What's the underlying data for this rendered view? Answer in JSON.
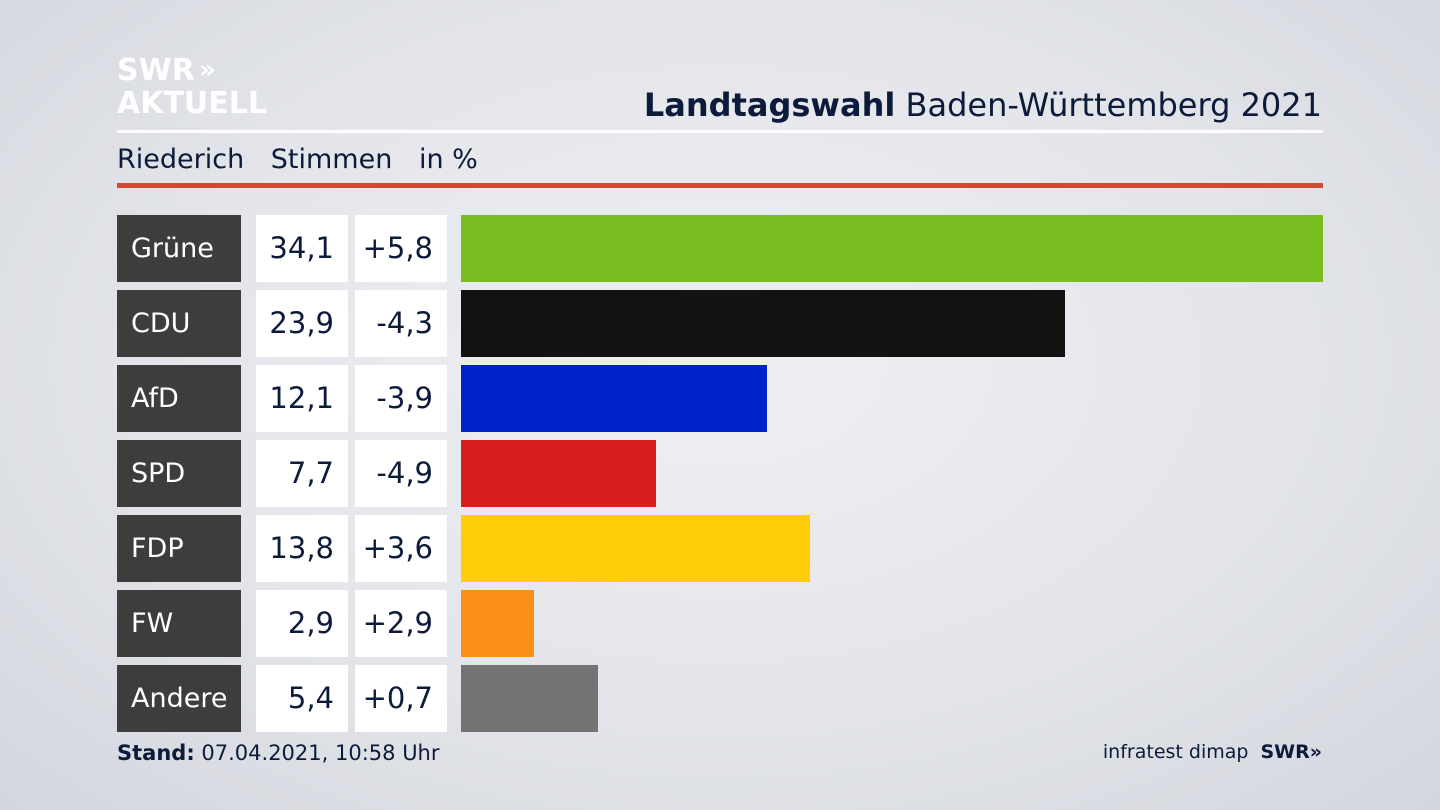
{
  "brand": {
    "line1": "SWR",
    "arrows": "»",
    "line2": "AKTUELL"
  },
  "header": {
    "title_bold": "Landtagswahl",
    "title_rest": "Baden-Württemberg 2021"
  },
  "subheader": {
    "place": "Riederich",
    "label": "Stimmen",
    "unit": "in %"
  },
  "footer": {
    "stand_label": "Stand:",
    "stand_value": "07.04.2021, 10:58 Uhr",
    "source": "infratest dimap",
    "logo": "SWR»"
  },
  "colors": {
    "Grüne": "#78be20",
    "CDU": "#121212",
    "AfD": "#0021cc",
    "SPD": "#d81f1f",
    "FDP": "#ffcc08",
    "FW": "#fd8e17",
    "Andere": "#737373"
  },
  "chart_data": {
    "type": "bar",
    "orientation": "horizontal",
    "categories": [
      "Grüne",
      "CDU",
      "AfD",
      "SPD",
      "FDP",
      "FW",
      "Andere"
    ],
    "values": [
      34.1,
      23.9,
      12.1,
      7.7,
      13.8,
      2.9,
      5.4
    ],
    "value_labels": [
      "34,1",
      "23,9",
      "12,1",
      "7,7",
      "13,8",
      "2,9",
      "5,4"
    ],
    "diff_values": [
      5.8,
      -4.3,
      -3.9,
      -4.9,
      3.6,
      2.9,
      0.7
    ],
    "diff_labels": [
      "+5,8",
      "-4,3",
      "-3,9",
      "-4,9",
      "+3,6",
      "+2,9",
      "+0,7"
    ],
    "xlim": [
      0,
      34.1
    ]
  }
}
